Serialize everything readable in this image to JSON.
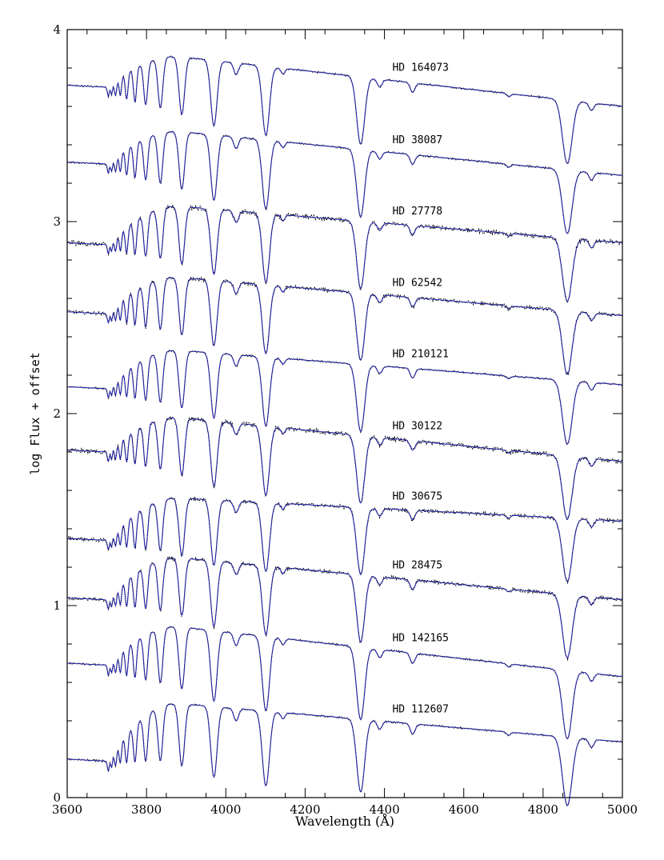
{
  "chart_data": {
    "type": "line",
    "xlabel": "Wavelength (Å)",
    "ylabel": "log Flux + offset",
    "xlim": [
      3600,
      5000
    ],
    "ylim": [
      0,
      4
    ],
    "x_ticks": [
      "3600",
      "3800",
      "4000",
      "4200",
      "4400",
      "4600",
      "4800",
      "5000"
    ],
    "y_ticks": [
      "0",
      "1",
      "2",
      "3",
      "4"
    ],
    "grid": false,
    "legend": "none",
    "colors": {
      "observed": "#000000",
      "model": "#1a1ab0"
    },
    "absorption_lines": [
      3704,
      3712,
      3722,
      3734,
      3750,
      3771,
      3798,
      3835,
      3889,
      3970,
      4026,
      4101,
      4144,
      4340,
      4388,
      4471,
      4713,
      4861,
      4922
    ],
    "series": [
      {
        "name": "HD 164073",
        "offset": 3.71,
        "cont_blue": 3.71,
        "cont_peak": 3.86,
        "cont_red": 3.6,
        "noise": 0.004
      },
      {
        "name": "HD 38087",
        "offset": 3.31,
        "cont_blue": 3.31,
        "cont_peak": 3.47,
        "cont_red": 3.24,
        "noise": 0.004
      },
      {
        "name": "HD 27778",
        "offset": 2.89,
        "cont_blue": 2.89,
        "cont_peak": 3.08,
        "cont_red": 2.89,
        "noise": 0.01
      },
      {
        "name": "HD 62542",
        "offset": 2.53,
        "cont_blue": 2.53,
        "cont_peak": 2.71,
        "cont_red": 2.51,
        "noise": 0.008
      },
      {
        "name": "HD 210121",
        "offset": 2.14,
        "cont_blue": 2.14,
        "cont_peak": 2.33,
        "cont_red": 2.15,
        "noise": 0.004
      },
      {
        "name": "HD 30122",
        "offset": 1.81,
        "cont_blue": 1.81,
        "cont_peak": 1.98,
        "cont_red": 1.75,
        "noise": 0.01
      },
      {
        "name": "HD 30675",
        "offset": 1.35,
        "cont_blue": 1.35,
        "cont_peak": 1.56,
        "cont_red": 1.44,
        "noise": 0.008
      },
      {
        "name": "HD 28475",
        "offset": 1.04,
        "cont_blue": 1.04,
        "cont_peak": 1.25,
        "cont_red": 1.03,
        "noise": 0.008
      },
      {
        "name": "HD 142165",
        "offset": 0.7,
        "cont_blue": 0.7,
        "cont_peak": 0.89,
        "cont_red": 0.63,
        "noise": 0.004
      },
      {
        "name": "HD 112607",
        "offset": 0.2,
        "cont_blue": 0.2,
        "cont_peak": 0.49,
        "cont_red": 0.29,
        "noise": 0.004
      }
    ]
  }
}
